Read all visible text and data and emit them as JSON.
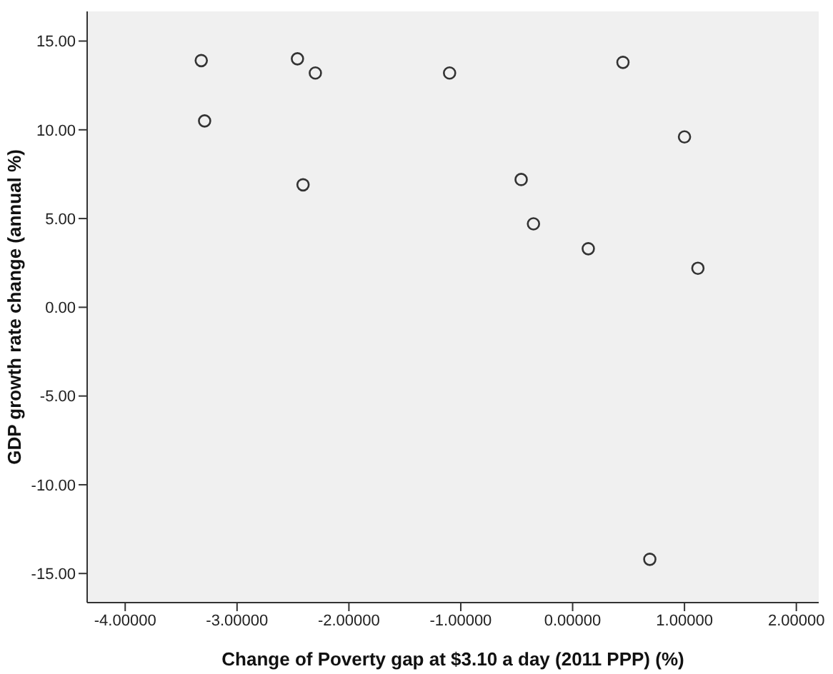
{
  "chart_data": {
    "type": "scatter",
    "xlabel": "Change of Poverty gap at $3.10 a day (2011 PPP) (%)",
    "ylabel": "GDP growth rate change (annual %)",
    "x": [
      -3.32,
      -3.29,
      -2.46,
      -2.3,
      -2.41,
      -1.1,
      -0.46,
      -0.35,
      0.14,
      0.45,
      1.0,
      1.12,
      0.69
    ],
    "values": [
      13.9,
      10.5,
      14.0,
      13.2,
      6.9,
      13.2,
      7.2,
      4.7,
      3.3,
      13.8,
      9.6,
      2.2,
      -14.2
    ],
    "color": "#333333",
    "marker": "circle",
    "grid": false,
    "legend": false,
    "xlim": [
      -4.34,
      2.2
    ],
    "xticks": [
      {
        "value": -4,
        "label": "-4.00000"
      },
      {
        "value": -3,
        "label": "-3.00000"
      },
      {
        "value": -2,
        "label": "-2.00000"
      },
      {
        "value": -1,
        "label": "-1.00000"
      },
      {
        "value": 0,
        "label": "0.00000"
      },
      {
        "value": 1,
        "label": "1.00000"
      },
      {
        "value": 2,
        "label": "2.00000"
      }
    ],
    "ylim": [
      -16.64,
      16.67
    ],
    "yticks": [
      {
        "value": -15,
        "label": "-15.00"
      },
      {
        "value": -10,
        "label": "-10.00"
      },
      {
        "value": -5,
        "label": "-5.00"
      },
      {
        "value": 0,
        "label": "0.00"
      },
      {
        "value": 5,
        "label": "5.00"
      },
      {
        "value": 10,
        "label": "10.00"
      },
      {
        "value": 15,
        "label": "15.00"
      }
    ]
  }
}
